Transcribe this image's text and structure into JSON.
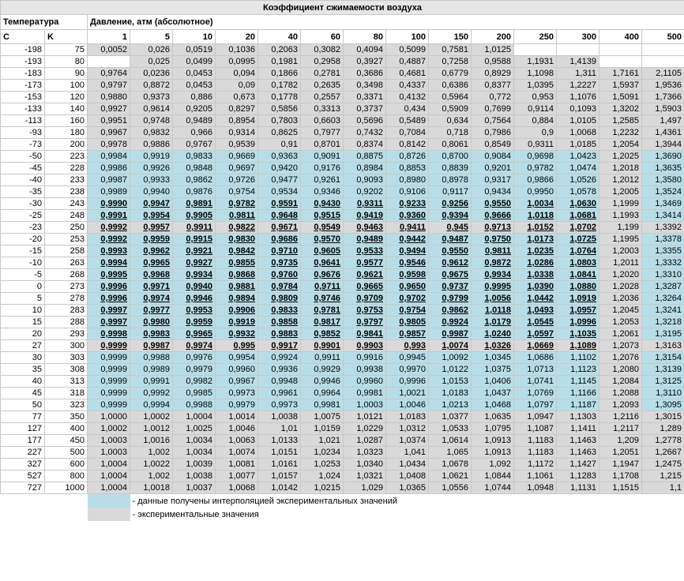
{
  "title": "Коэффициент сжимаемости воздуха",
  "header": {
    "temperature": "Температура",
    "pressure": "Давление, атм (абсолютное)"
  },
  "subheader": [
    "C",
    "K",
    "1",
    "5",
    "10",
    "20",
    "40",
    "60",
    "80",
    "100",
    "150",
    "200",
    "250",
    "300",
    "400",
    "500"
  ],
  "rows": [
    [
      "-198",
      "75",
      "0,0052",
      "0,026",
      "0,0519",
      "0,1036",
      "0,2063",
      "0,3082",
      "0,4094",
      "0,5099",
      "0,7581",
      "1,0125",
      null,
      null,
      null,
      null
    ],
    [
      "-193",
      "80",
      null,
      "0,025",
      "0,0499",
      "0,0995",
      "0,1981",
      "0,2958",
      "0,3927",
      "0,4887",
      "0,7258",
      "0,9588",
      "1,1931",
      "1,4139",
      null,
      null
    ],
    [
      "-183",
      "90",
      "0,9764",
      "0,0236",
      "0,0453",
      "0,094",
      "0,1866",
      "0,2781",
      "0,3686",
      "0,4681",
      "0,6779",
      "0,8929",
      "1,1098",
      "1,311",
      "1,7161",
      "2,1105"
    ],
    [
      "-173",
      "100",
      "0,9797",
      "0,8872",
      "0,0453",
      "0,09",
      "0,1782",
      "0,2635",
      "0,3498",
      "0,4337",
      "0,6386",
      "0,8377",
      "1,0395",
      "1,2227",
      "1,5937",
      "1,9536"
    ],
    [
      "-153",
      "120",
      "0,9880",
      "0,9373",
      "0,886",
      "0,673",
      "0,1778",
      "0,2557",
      "0,3371",
      "0,4132",
      "0,5964",
      "0,772",
      "0,953",
      "1,1076",
      "1,5091",
      "1,7366"
    ],
    [
      "-133",
      "140",
      "0,9927",
      "0,9614",
      "0,9205",
      "0,8297",
      "0,5856",
      "0,3313",
      "0,3737",
      "0,434",
      "0,5909",
      "0,7699",
      "0,9114",
      "0,1093",
      "1,3202",
      "1,5903"
    ],
    [
      "-113",
      "160",
      "0,9951",
      "0,9748",
      "0,9489",
      "0,8954",
      "0,7803",
      "0,6603",
      "0,5696",
      "0,5489",
      "0,634",
      "0,7564",
      "0,884",
      "1,0105",
      "1,2585",
      "1,497"
    ],
    [
      "-93",
      "180",
      "0,9967",
      "0,9832",
      "0,966",
      "0,9314",
      "0,8625",
      "0,7977",
      "0,7432",
      "0,7084",
      "0,718",
      "0,7986",
      "0,9",
      "1,0068",
      "1,2232",
      "1,4361"
    ],
    [
      "-73",
      "200",
      "0,9978",
      "0,9886",
      "0,9767",
      "0,9539",
      "0,91",
      "0,8701",
      "0,8374",
      "0,8142",
      "0,8061",
      "0,8549",
      "0,9311",
      "1,0185",
      "1,2054",
      "1,3944"
    ],
    [
      "-50",
      "223",
      "0,9984",
      "0,9919",
      "0,9833",
      "0,9669",
      "0,9363",
      "0,9091",
      "0,8875",
      "0,8726",
      "0,8700",
      "0,9084",
      "0,9698",
      "1,0423",
      "1,2025",
      "1,3690"
    ],
    [
      "-45",
      "228",
      "0,9986",
      "0,9926",
      "0,9848",
      "0,9697",
      "0,9420",
      "0,9176",
      "0,8984",
      "0,8853",
      "0,8839",
      "0,9201",
      "0,9782",
      "1,0474",
      "1,2018",
      "1,3635"
    ],
    [
      "-40",
      "233",
      "0,9987",
      "0,9933",
      "0,9862",
      "0,9726",
      "0,9477",
      "0,9261",
      "0,9093",
      "0,8980",
      "0,8978",
      "0,9317",
      "0,9866",
      "1,0526",
      "1,2012",
      "1,3580"
    ],
    [
      "-35",
      "238",
      "0,9989",
      "0,9940",
      "0,9876",
      "0,9754",
      "0,9534",
      "0,9346",
      "0,9202",
      "0,9106",
      "0,9117",
      "0,9434",
      "0,9950",
      "1,0578",
      "1,2005",
      "1,3524"
    ],
    [
      "-30",
      "243",
      "0,9990",
      "0,9947",
      "0,9891",
      "0,9782",
      "0,9591",
      "0,9430",
      "0,9311",
      "0,9233",
      "0,9256",
      "0,9550",
      "1,0034",
      "1,0630",
      "1,1999",
      "1,3469"
    ],
    [
      "-25",
      "248",
      "0,9991",
      "0,9954",
      "0,9905",
      "0,9811",
      "0,9648",
      "0,9515",
      "0,9419",
      "0,9360",
      "0,9394",
      "0,9666",
      "1,0118",
      "1,0681",
      "1,1993",
      "1,3414"
    ],
    [
      "-23",
      "250",
      "0,9992",
      "0,9957",
      "0,9911",
      "0,9822",
      "0,9671",
      "0,9549",
      "0,9463",
      "0,9411",
      "0,945",
      "0,9713",
      "1,0152",
      "1,0702",
      "1,199",
      "1,3392"
    ],
    [
      "-20",
      "253",
      "0,9992",
      "0,9959",
      "0,9915",
      "0,9830",
      "0,9686",
      "0,9570",
      "0,9489",
      "0,9442",
      "0,9487",
      "0,9750",
      "1,0173",
      "1,0725",
      "1,1995",
      "1,3378"
    ],
    [
      "-15",
      "258",
      "0,9993",
      "0,9962",
      "0,9921",
      "0,9842",
      "0,9710",
      "0,9605",
      "0,9533",
      "0,9494",
      "0,9550",
      "0,9811",
      "1,0235",
      "1,0764",
      "1,2003",
      "1,3355"
    ],
    [
      "-10",
      "263",
      "0,9994",
      "0,9965",
      "0,9927",
      "0,9855",
      "0,9735",
      "0,9641",
      "0,9577",
      "0,9546",
      "0,9612",
      "0,9872",
      "1,0286",
      "1,0803",
      "1,2011",
      "1,3332"
    ],
    [
      "-5",
      "268",
      "0,9995",
      "0,9968",
      "0,9934",
      "0,9868",
      "0,9760",
      "0,9676",
      "0,9621",
      "0,9598",
      "0,9675",
      "0,9934",
      "1,0338",
      "1,0841",
      "1,2020",
      "1,3310"
    ],
    [
      "0",
      "273",
      "0,9996",
      "0,9971",
      "0,9940",
      "0,9881",
      "0,9784",
      "0,9711",
      "0,9665",
      "0,9650",
      "0,9737",
      "0,9995",
      "1,0390",
      "1,0880",
      "1,2028",
      "1,3287"
    ],
    [
      "5",
      "278",
      "0,9996",
      "0,9974",
      "0,9946",
      "0,9894",
      "0,9809",
      "0,9746",
      "0,9709",
      "0,9702",
      "0,9799",
      "1,0056",
      "1,0442",
      "1,0919",
      "1,2036",
      "1,3264"
    ],
    [
      "10",
      "283",
      "0,9997",
      "0,9977",
      "0,9953",
      "0,9906",
      "0,9833",
      "0,9781",
      "0,9753",
      "0,9754",
      "0,9862",
      "1,0118",
      "1,0493",
      "1,0957",
      "1,2045",
      "1,3241"
    ],
    [
      "15",
      "288",
      "0,9997",
      "0,9980",
      "0,9959",
      "0,9919",
      "0,9858",
      "0,9817",
      "0,9797",
      "0,9805",
      "0,9924",
      "1,0179",
      "1,0545",
      "1,0996",
      "1,2053",
      "1,3218"
    ],
    [
      "20",
      "293",
      "0,9998",
      "0,9983",
      "0,9965",
      "0,9932",
      "0,9883",
      "0,9852",
      "0,9841",
      "0,9857",
      "0,9987",
      "1,0240",
      "1,0597",
      "1,1035",
      "1,2061",
      "1,3195"
    ],
    [
      "27",
      "300",
      "0,9999",
      "0,9987",
      "0,9974",
      "0,995",
      "0,9917",
      "0,9901",
      "0,9903",
      "0,993",
      "1,0074",
      "1,0326",
      "1,0669",
      "1,1089",
      "1,2073",
      "1,3163"
    ],
    [
      "30",
      "303",
      "0,9999",
      "0,9988",
      "0,9976",
      "0,9954",
      "0,9924",
      "0,9911",
      "0,9916",
      "0,9945",
      "1,0092",
      "1,0345",
      "1,0686",
      "1,1102",
      "1,2076",
      "1,3154"
    ],
    [
      "35",
      "308",
      "0,9999",
      "0,9989",
      "0,9979",
      "0,9960",
      "0,9936",
      "0,9929",
      "0,9938",
      "0,9970",
      "1,0122",
      "1,0375",
      "1,0713",
      "1,1123",
      "1,2080",
      "1,3139"
    ],
    [
      "40",
      "313",
      "0,9999",
      "0,9991",
      "0,9982",
      "0,9967",
      "0,9948",
      "0,9946",
      "0,9960",
      "0,9996",
      "1,0153",
      "1,0406",
      "1,0741",
      "1,1145",
      "1,2084",
      "1,3125"
    ],
    [
      "45",
      "318",
      "0,9999",
      "0,9992",
      "0,9985",
      "0,9973",
      "0,9961",
      "0,9964",
      "0,9981",
      "1,0021",
      "1,0183",
      "1,0437",
      "1,0769",
      "1,1166",
      "1,2088",
      "1,3110"
    ],
    [
      "50",
      "323",
      "0,9999",
      "0,9994",
      "0,9988",
      "0,9979",
      "0,9973",
      "0,9981",
      "1,0003",
      "1,0046",
      "1,0213",
      "1,0468",
      "1,0797",
      "1,1187",
      "1,2093",
      "1,3095"
    ],
    [
      "77",
      "350",
      "1,0000",
      "1,0002",
      "1,0004",
      "1,0014",
      "1,0038",
      "1,0075",
      "1,0121",
      "1,0183",
      "1,0377",
      "1,0635",
      "1,0947",
      "1,1303",
      "1,2116",
      "1,3015"
    ],
    [
      "127",
      "400",
      "1,0002",
      "1,0012",
      "1,0025",
      "1,0046",
      "1,01",
      "1,0159",
      "1,0229",
      "1,0312",
      "1,0533",
      "1,0795",
      "1,1087",
      "1,1411",
      "1,2117",
      "1,289"
    ],
    [
      "177",
      "450",
      "1,0003",
      "1,0016",
      "1,0034",
      "1,0063",
      "1,0133",
      "1,021",
      "1,0287",
      "1,0374",
      "1,0614",
      "1,0913",
      "1,1183",
      "1,1463",
      "1,209",
      "1,2778"
    ],
    [
      "227",
      "500",
      "1,0003",
      "1,002",
      "1,0034",
      "1,0074",
      "1,0151",
      "1,0234",
      "1,0323",
      "1,041",
      "1,065",
      "1,0913",
      "1,1183",
      "1,1463",
      "1,2051",
      "1,2667"
    ],
    [
      "327",
      "600",
      "1,0004",
      "1,0022",
      "1,0039",
      "1,0081",
      "1,0161",
      "1,0253",
      "1,0340",
      "1,0434",
      "1,0678",
      "1,092",
      "1,1172",
      "1,1427",
      "1,1947",
      "1,2475"
    ],
    [
      "527",
      "800",
      "1,0004",
      "1,002",
      "1,0038",
      "1,0077",
      "1,0157",
      "1,024",
      "1,0321",
      "1,0408",
      "1,0621",
      "1,0844",
      "1,1061",
      "1,1283",
      "1,1708",
      "1,215"
    ],
    [
      "727",
      "1000",
      "1,0004",
      "1,0018",
      "1,0037",
      "1,0068",
      "1,0142",
      "1,0215",
      "1,029",
      "1,0365",
      "1,0556",
      "1,0744",
      "1,0948",
      "1,1131",
      "1,1515",
      "1,1"
    ]
  ],
  "legend": [
    "- данные получены интерполяцией экспериментальных значений",
    "- экспериментальные значения"
  ]
}
